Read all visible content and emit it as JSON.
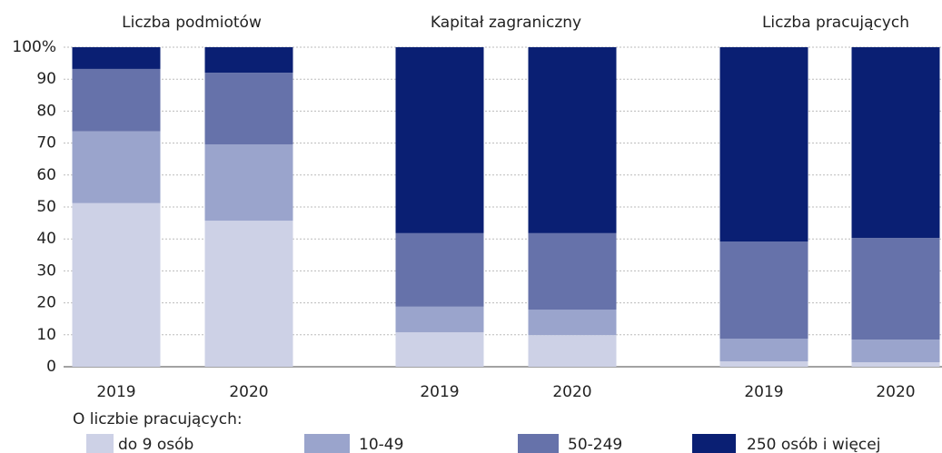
{
  "chart_data": {
    "type": "stacked-bar",
    "groups": [
      "Liczba podmiotów",
      "Kapitał zagraniczny",
      "Liczba pracujących"
    ],
    "categories": [
      "2019",
      "2020",
      "2019",
      "2020",
      "2019",
      "2020"
    ],
    "legend_title": "O liczbie pracujących:",
    "series": [
      {
        "name": "do 9 osób",
        "color": "#cdd1e6",
        "values": [
          51.2,
          45.7,
          10.8,
          9.9,
          1.7,
          1.4
        ]
      },
      {
        "name": "10-49",
        "color": "#9aa4cc",
        "values": [
          22.5,
          23.9,
          8.0,
          8.0,
          7.1,
          7.1
        ]
      },
      {
        "name": "50-249",
        "color": "#6672aa",
        "values": [
          19.5,
          22.4,
          23.0,
          23.9,
          30.4,
          31.8
        ]
      },
      {
        "name": "250 osób i więcej",
        "color": "#0a1f73",
        "values": [
          6.8,
          8.0,
          58.2,
          58.2,
          60.8,
          59.7
        ]
      }
    ],
    "ylim": [
      0,
      100
    ],
    "yticks": [
      0,
      10,
      20,
      30,
      40,
      50,
      60,
      70,
      80,
      90,
      {
        "value": 100,
        "label": "100%"
      }
    ],
    "grid": true
  }
}
